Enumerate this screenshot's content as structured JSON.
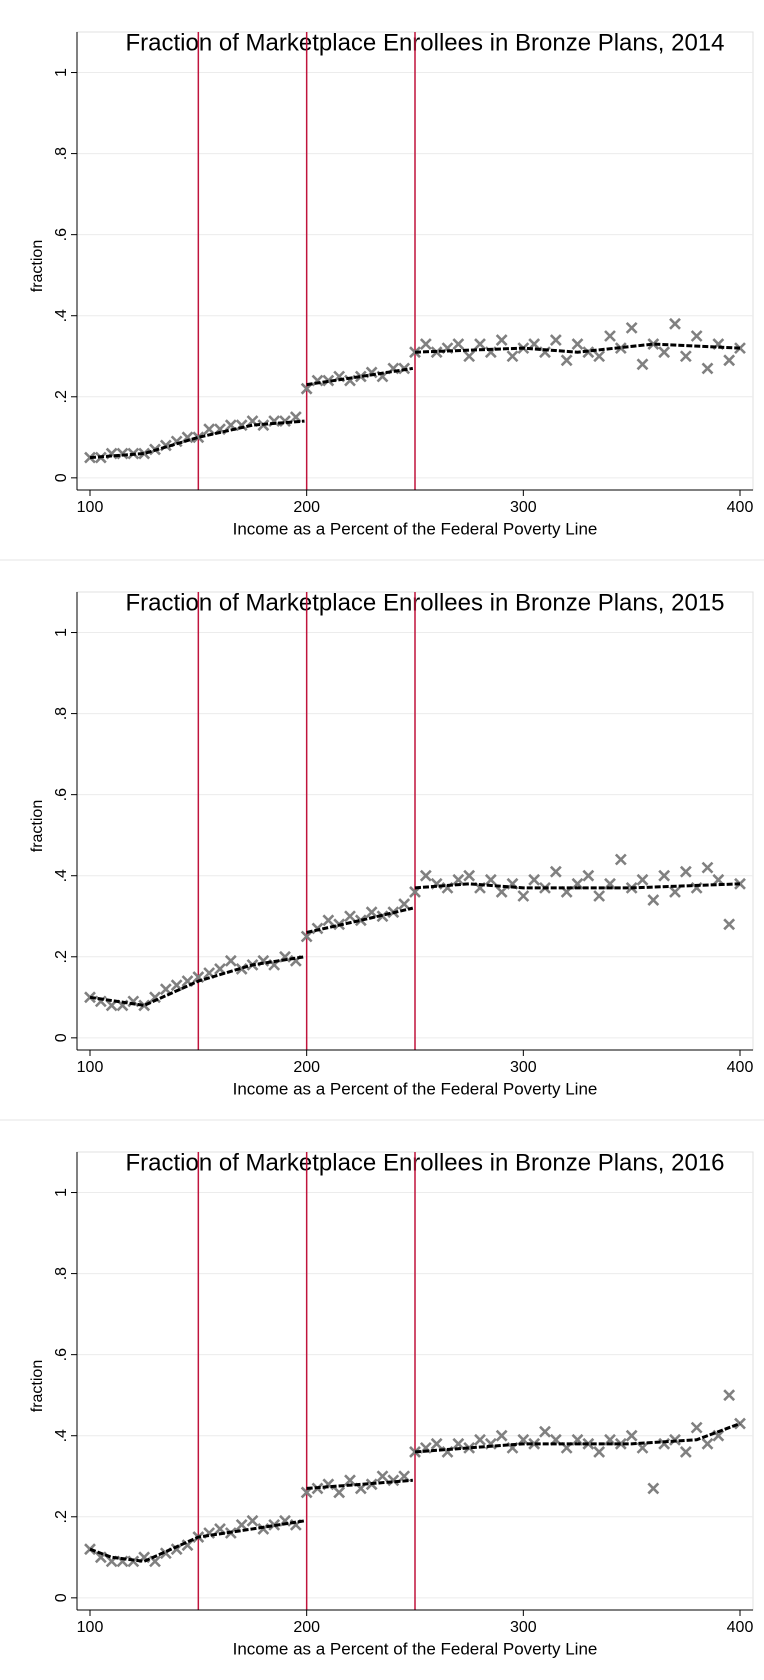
{
  "chart_data": [
    {
      "type": "scatter",
      "title": "Fraction of Marketplace Enrollees in Bronze Plans, 2014",
      "xlabel": "Income as a Percent of the Federal Poverty Line",
      "ylabel": "fraction",
      "xlim": [
        94,
        406
      ],
      "ylim": [
        -0.03,
        1.1
      ],
      "xticks": [
        100,
        200,
        300,
        400
      ],
      "yticks": [
        0,
        {
          "value": 0.2,
          "label": ".2"
        },
        {
          "value": 0.4,
          "label": ".4"
        },
        {
          "value": 0.6,
          "label": ".6"
        },
        {
          "value": 0.8,
          "label": ".8"
        },
        1
      ],
      "grid": true,
      "vlines": [
        150,
        200,
        250
      ],
      "vline_color": "#c0143c",
      "marker_color": "#808080",
      "fit_color": "#000000",
      "x": [
        100,
        105,
        110,
        115,
        120,
        125,
        130,
        135,
        140,
        145,
        150,
        155,
        160,
        165,
        170,
        175,
        180,
        185,
        190,
        195,
        200,
        205,
        210,
        215,
        220,
        225,
        230,
        235,
        240,
        245,
        250,
        255,
        260,
        265,
        270,
        275,
        280,
        285,
        290,
        295,
        300,
        305,
        310,
        315,
        320,
        325,
        330,
        335,
        340,
        345,
        350,
        355,
        360,
        365,
        370,
        375,
        380,
        385,
        390,
        395,
        400
      ],
      "y": [
        0.05,
        0.05,
        0.06,
        0.06,
        0.06,
        0.06,
        0.07,
        0.08,
        0.09,
        0.1,
        0.1,
        0.12,
        0.12,
        0.13,
        0.13,
        0.14,
        0.13,
        0.14,
        0.14,
        0.15,
        0.22,
        0.24,
        0.24,
        0.25,
        0.24,
        0.25,
        0.26,
        0.25,
        0.27,
        0.27,
        0.31,
        0.33,
        0.31,
        0.32,
        0.33,
        0.3,
        0.33,
        0.31,
        0.34,
        0.3,
        0.32,
        0.33,
        0.31,
        0.34,
        0.29,
        0.33,
        0.31,
        0.3,
        0.35,
        0.32,
        0.37,
        0.28,
        0.33,
        0.31,
        0.38,
        0.3,
        0.35,
        0.27,
        0.33,
        0.29,
        0.32
      ],
      "fit": [
        {
          "x": [
            100,
            125,
            150,
            175,
            199
          ],
          "y": [
            0.05,
            0.06,
            0.1,
            0.13,
            0.14
          ]
        },
        {
          "x": [
            200,
            225,
            249
          ],
          "y": [
            0.23,
            0.25,
            0.27
          ]
        },
        {
          "x": [
            250,
            300,
            325,
            360,
            400
          ],
          "y": [
            0.31,
            0.32,
            0.31,
            0.33,
            0.32
          ]
        }
      ]
    },
    {
      "type": "scatter",
      "title": "Fraction of Marketplace Enrollees in Bronze Plans, 2015",
      "xlabel": "Income as a Percent of the Federal Poverty Line",
      "ylabel": "fraction",
      "xlim": [
        94,
        406
      ],
      "ylim": [
        -0.03,
        1.1
      ],
      "xticks": [
        100,
        200,
        300,
        400
      ],
      "yticks": [
        0,
        {
          "value": 0.2,
          "label": ".2"
        },
        {
          "value": 0.4,
          "label": ".4"
        },
        {
          "value": 0.6,
          "label": ".6"
        },
        {
          "value": 0.8,
          "label": ".8"
        },
        1
      ],
      "grid": true,
      "vlines": [
        150,
        200,
        250
      ],
      "vline_color": "#c0143c",
      "marker_color": "#808080",
      "fit_color": "#000000",
      "x": [
        100,
        105,
        110,
        115,
        120,
        125,
        130,
        135,
        140,
        145,
        150,
        155,
        160,
        165,
        170,
        175,
        180,
        185,
        190,
        195,
        200,
        205,
        210,
        215,
        220,
        225,
        230,
        235,
        240,
        245,
        250,
        255,
        260,
        265,
        270,
        275,
        280,
        285,
        290,
        295,
        300,
        305,
        310,
        315,
        320,
        325,
        330,
        335,
        340,
        345,
        350,
        355,
        360,
        365,
        370,
        375,
        380,
        385,
        390,
        395,
        400
      ],
      "y": [
        0.1,
        0.09,
        0.08,
        0.08,
        0.09,
        0.08,
        0.1,
        0.12,
        0.13,
        0.14,
        0.15,
        0.16,
        0.17,
        0.19,
        0.17,
        0.18,
        0.19,
        0.18,
        0.2,
        0.19,
        0.25,
        0.27,
        0.29,
        0.28,
        0.3,
        0.29,
        0.31,
        0.3,
        0.31,
        0.33,
        0.36,
        0.4,
        0.38,
        0.37,
        0.39,
        0.4,
        0.37,
        0.39,
        0.36,
        0.38,
        0.35,
        0.39,
        0.37,
        0.41,
        0.36,
        0.38,
        0.4,
        0.35,
        0.38,
        0.44,
        0.37,
        0.39,
        0.34,
        0.4,
        0.36,
        0.41,
        0.37,
        0.42,
        0.39,
        0.28,
        0.38
      ],
      "fit": [
        {
          "x": [
            100,
            125,
            150,
            175,
            199
          ],
          "y": [
            0.1,
            0.08,
            0.14,
            0.18,
            0.2
          ]
        },
        {
          "x": [
            200,
            225,
            249
          ],
          "y": [
            0.26,
            0.29,
            0.32
          ]
        },
        {
          "x": [
            250,
            275,
            300,
            350,
            400
          ],
          "y": [
            0.37,
            0.38,
            0.37,
            0.37,
            0.38
          ]
        }
      ]
    },
    {
      "type": "scatter",
      "title": "Fraction of Marketplace Enrollees in Bronze Plans, 2016",
      "xlabel": "Income as a Percent of the Federal Poverty Line",
      "ylabel": "fraction",
      "xlim": [
        94,
        406
      ],
      "ylim": [
        -0.03,
        1.1
      ],
      "xticks": [
        100,
        200,
        300,
        400
      ],
      "yticks": [
        0,
        {
          "value": 0.2,
          "label": ".2"
        },
        {
          "value": 0.4,
          "label": ".4"
        },
        {
          "value": 0.6,
          "label": ".6"
        },
        {
          "value": 0.8,
          "label": ".8"
        },
        1
      ],
      "grid": true,
      "vlines": [
        150,
        200,
        250
      ],
      "vline_color": "#c0143c",
      "marker_color": "#808080",
      "fit_color": "#000000",
      "x": [
        100,
        105,
        110,
        115,
        120,
        125,
        130,
        135,
        140,
        145,
        150,
        155,
        160,
        165,
        170,
        175,
        180,
        185,
        190,
        195,
        200,
        205,
        210,
        215,
        220,
        225,
        230,
        235,
        240,
        245,
        250,
        255,
        260,
        265,
        270,
        275,
        280,
        285,
        290,
        295,
        300,
        305,
        310,
        315,
        320,
        325,
        330,
        335,
        340,
        345,
        350,
        355,
        360,
        365,
        370,
        375,
        380,
        385,
        390,
        395,
        400
      ],
      "y": [
        0.12,
        0.1,
        0.09,
        0.09,
        0.09,
        0.1,
        0.09,
        0.11,
        0.12,
        0.13,
        0.15,
        0.16,
        0.17,
        0.16,
        0.18,
        0.19,
        0.17,
        0.18,
        0.19,
        0.18,
        0.26,
        0.27,
        0.28,
        0.26,
        0.29,
        0.27,
        0.28,
        0.3,
        0.29,
        0.3,
        0.36,
        0.37,
        0.38,
        0.36,
        0.38,
        0.37,
        0.39,
        0.38,
        0.4,
        0.37,
        0.39,
        0.38,
        0.41,
        0.39,
        0.37,
        0.39,
        0.38,
        0.36,
        0.39,
        0.38,
        0.4,
        0.37,
        0.27,
        0.38,
        0.39,
        0.36,
        0.42,
        0.38,
        0.4,
        0.5,
        0.43
      ],
      "fit": [
        {
          "x": [
            100,
            110,
            125,
            150,
            175,
            199
          ],
          "y": [
            0.12,
            0.1,
            0.09,
            0.15,
            0.17,
            0.19
          ]
        },
        {
          "x": [
            200,
            225,
            249
          ],
          "y": [
            0.27,
            0.28,
            0.29
          ]
        },
        {
          "x": [
            250,
            300,
            350,
            380,
            400
          ],
          "y": [
            0.36,
            0.38,
            0.38,
            0.39,
            0.43
          ]
        }
      ]
    }
  ]
}
